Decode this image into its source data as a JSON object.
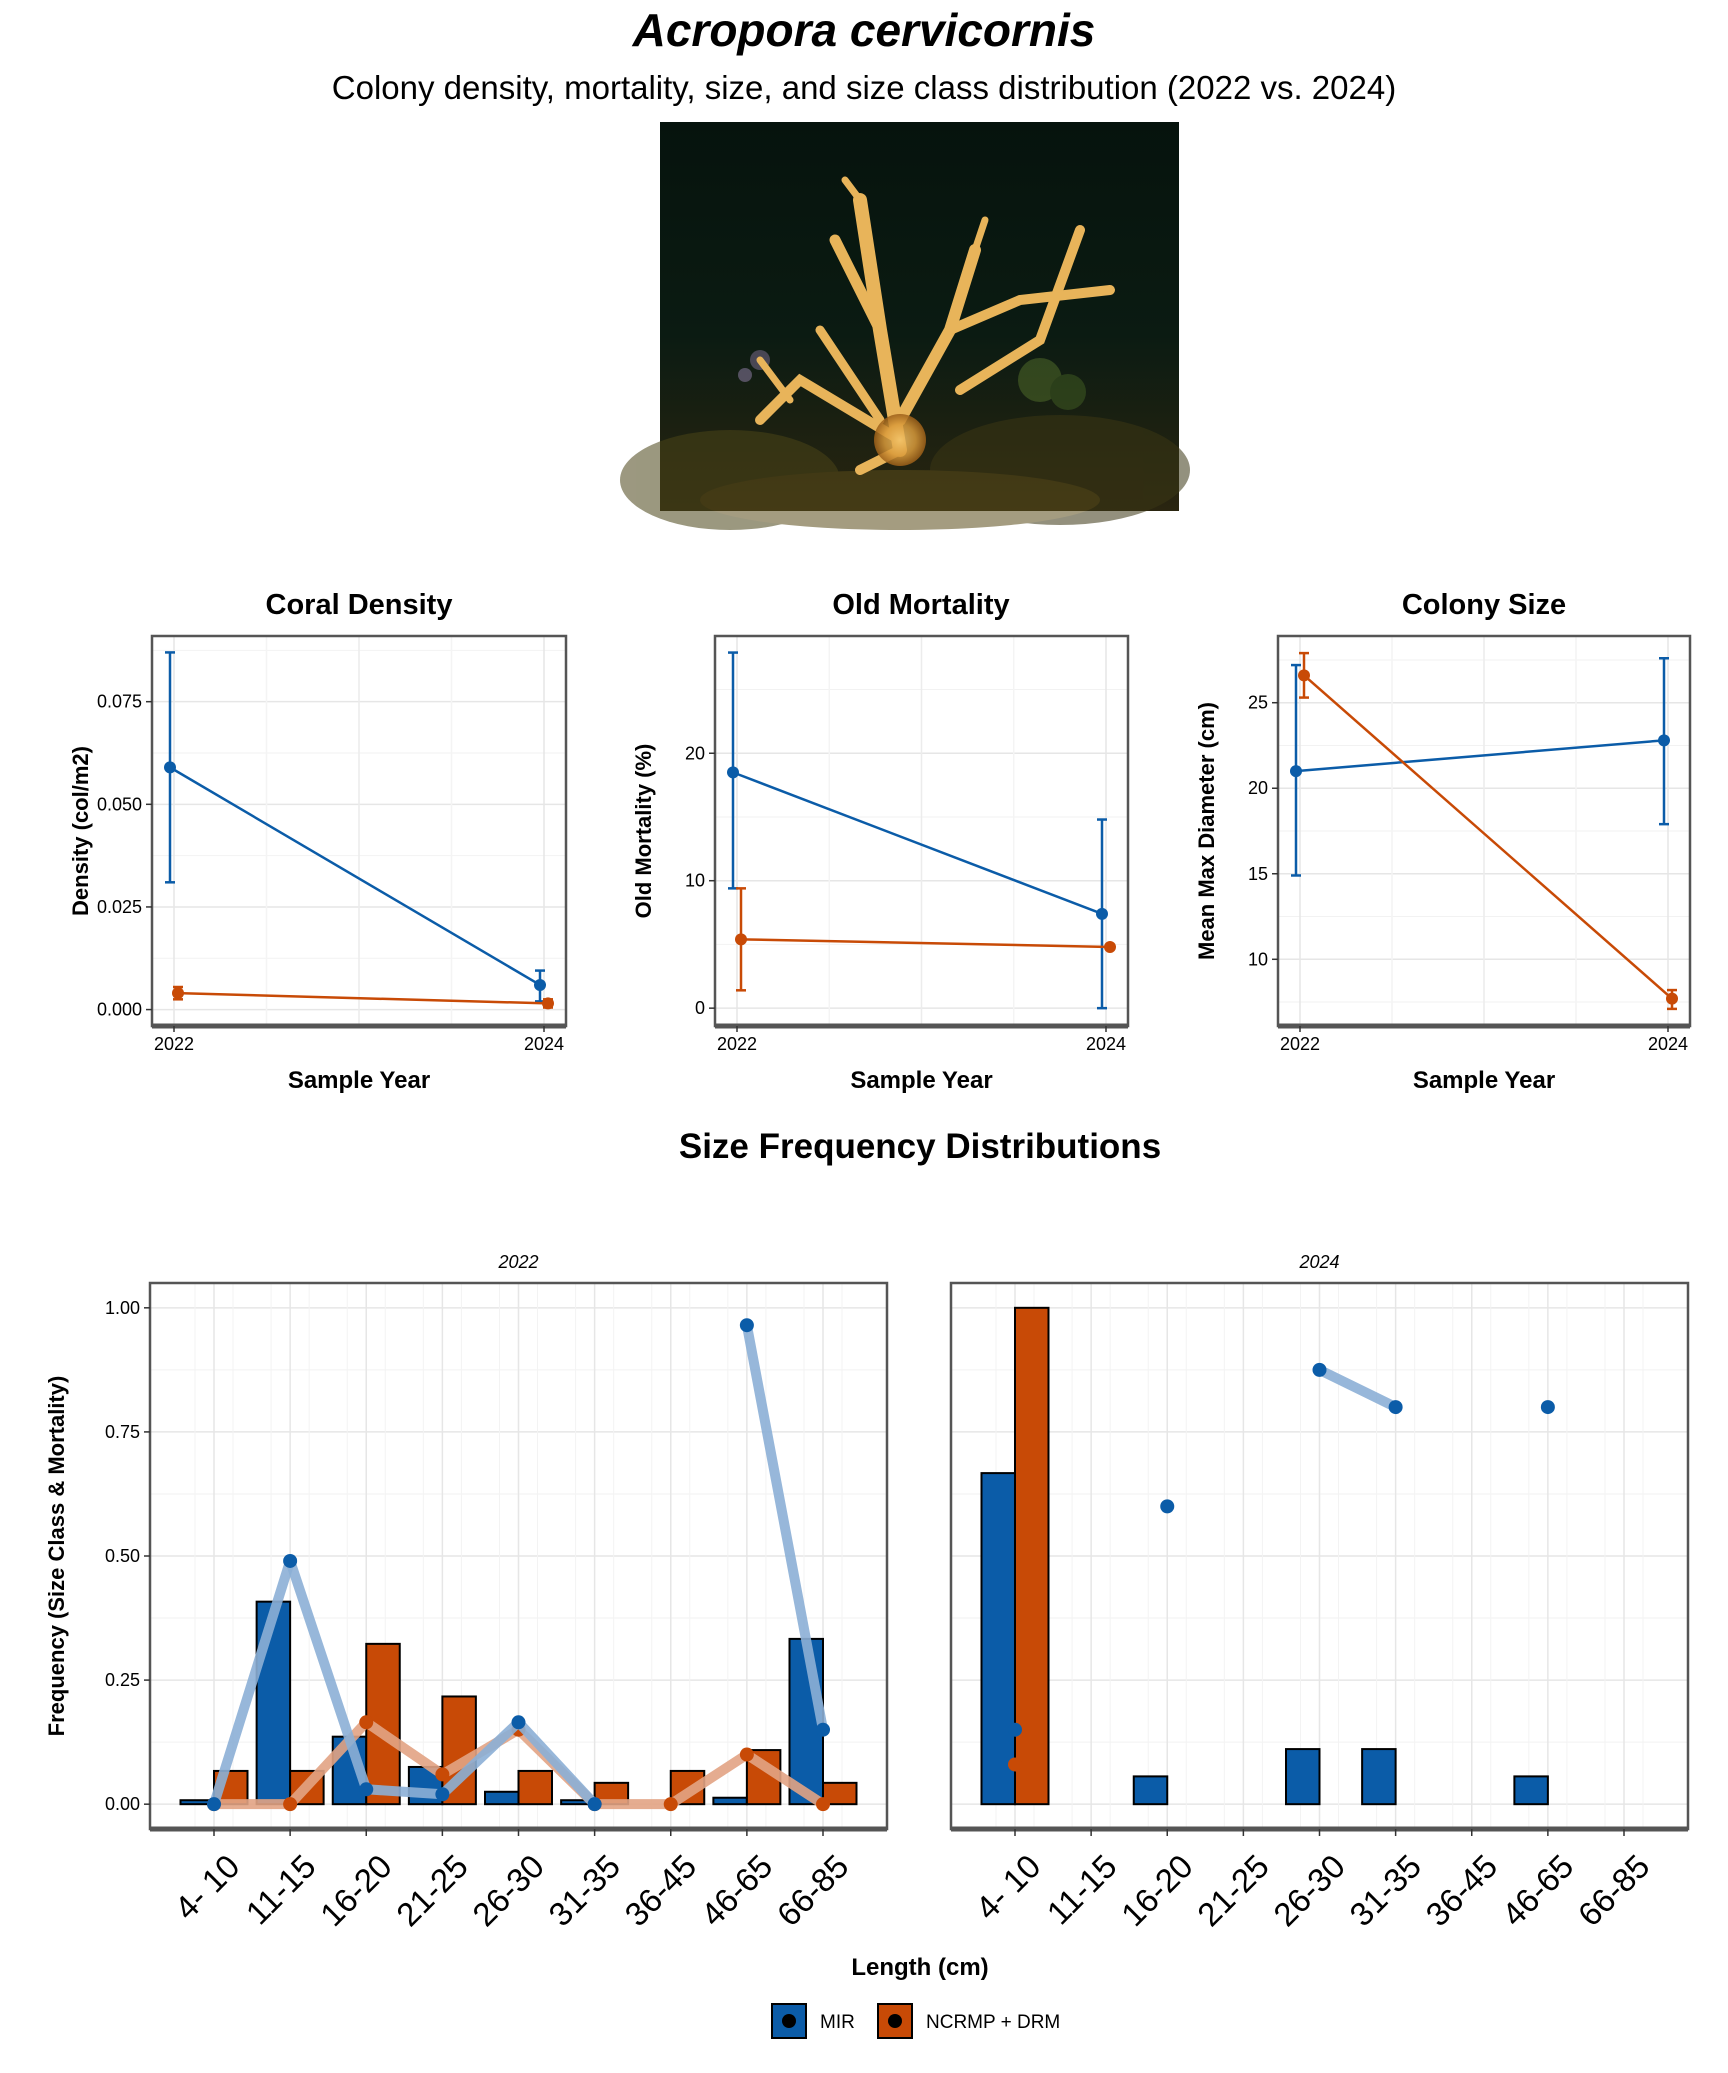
{
  "header": {
    "title": "Acropora cervicornis",
    "subtitle": "Colony density, mortality, size, and size class distribution (2022 vs. 2024)"
  },
  "colors": {
    "MIR": "#0b5ca8",
    "NCRMP + DRM": "#c84a06",
    "MIR_light": "#8cb0d6",
    "NCRMP_light": "#e3a484"
  },
  "photo": {
    "subject": "staghorn coral colony on reef"
  },
  "section_title": "Size Frequency Distributions",
  "legend": {
    "items": [
      "MIR",
      "NCRMP + DRM"
    ],
    "position": "bottom"
  },
  "chart_data": [
    {
      "type": "line",
      "title": "Coral Density",
      "xlabel": "Sample Year",
      "ylabel": "Density (col/m2)",
      "x": [
        2022,
        2024
      ],
      "ylim": [
        -0.004,
        0.091
      ],
      "yticks": [
        0,
        0.025,
        0.05,
        0.075
      ],
      "yticklabels": [
        "0.000",
        "0.025",
        "0.050",
        "0.075"
      ],
      "series": [
        {
          "name": "MIR",
          "values": [
            0.059,
            0.006
          ],
          "err_low": [
            0.031,
            0.002
          ],
          "err_high": [
            0.087,
            0.0095
          ]
        },
        {
          "name": "NCRMP + DRM",
          "values": [
            0.004,
            0.0015
          ],
          "err_low": [
            0.0025,
            0.0005
          ],
          "err_high": [
            0.0055,
            0.0025
          ]
        }
      ]
    },
    {
      "type": "line",
      "title": "Old Mortality",
      "xlabel": "Sample Year",
      "ylabel": "Old Mortality (%)",
      "x": [
        2022,
        2024
      ],
      "ylim": [
        -1.4,
        29.2
      ],
      "yticks": [
        0,
        10,
        20
      ],
      "yticklabels": [
        "0",
        "10",
        "20"
      ],
      "series": [
        {
          "name": "MIR",
          "values": [
            18.5,
            7.4
          ],
          "err_low": [
            9.4,
            0.0
          ],
          "err_high": [
            27.9,
            14.8
          ]
        },
        {
          "name": "NCRMP + DRM",
          "values": [
            5.4,
            4.8
          ],
          "err_low": [
            1.4,
            4.8
          ],
          "err_high": [
            9.4,
            4.8
          ]
        }
      ]
    },
    {
      "type": "line",
      "title": "Colony Size",
      "xlabel": "Sample Year",
      "ylabel": "Mean Max Diameter (cm)",
      "x": [
        2022,
        2024
      ],
      "ylim": [
        6.1,
        28.9
      ],
      "yticks": [
        10,
        15,
        20,
        25
      ],
      "yticklabels": [
        "10",
        "15",
        "20",
        "25"
      ],
      "series": [
        {
          "name": "MIR",
          "values": [
            21.0,
            22.8
          ],
          "err_low": [
            14.9,
            17.9
          ],
          "err_high": [
            27.2,
            27.6
          ]
        },
        {
          "name": "NCRMP + DRM",
          "values": [
            26.6,
            7.7
          ],
          "err_low": [
            25.3,
            7.1
          ],
          "err_high": [
            27.9,
            8.2
          ]
        }
      ]
    },
    {
      "type": "bar",
      "panels": [
        "2022",
        "2024"
      ],
      "xlabel": "Length (cm)",
      "ylabel": "Frequency (Size Class & Mortality)",
      "categories": [
        "4- 10",
        "11-15",
        "16-20",
        "21-25",
        "26-30",
        "31-35",
        "36-45",
        "46-65",
        "66-85"
      ],
      "ylim": [
        -0.05,
        1.05
      ],
      "yticks": [
        0,
        0.25,
        0.5,
        0.75,
        1.0
      ],
      "yticklabels": [
        "0.00",
        "0.25",
        "0.50",
        "0.75",
        "1.00"
      ],
      "bars": {
        "2022": {
          "MIR": [
            0.008,
            0.408,
            0.136,
            0.075,
            0.025,
            0.008,
            0.0,
            0.013,
            0.333
          ],
          "NCRMP + DRM": [
            0.067,
            0.067,
            0.323,
            0.217,
            0.067,
            0.043,
            0.067,
            0.109,
            0.043
          ]
        },
        "2024": {
          "MIR": [
            0.667,
            0.0,
            0.056,
            0.0,
            0.111,
            0.111,
            0.0,
            0.056,
            0.0
          ],
          "NCRMP + DRM": [
            1.0,
            0.0,
            0.0,
            0.0,
            0.0,
            0.0,
            0.0,
            0.0,
            0.0
          ]
        }
      },
      "mortality": {
        "2022": {
          "MIR": [
            0.0,
            0.49,
            0.03,
            0.02,
            0.165,
            0.0,
            null,
            0.965,
            0.15
          ],
          "NCRMP + DRM": [
            0.0,
            0.0,
            0.165,
            0.06,
            0.15,
            0.0,
            0.0,
            0.1,
            0.0
          ]
        },
        "2024": {
          "MIR": [
            0.15,
            null,
            0.6,
            null,
            0.875,
            0.8,
            null,
            0.8,
            null
          ],
          "NCRMP + DRM": [
            0.08,
            null,
            null,
            null,
            null,
            null,
            null,
            null,
            null
          ]
        }
      }
    }
  ]
}
